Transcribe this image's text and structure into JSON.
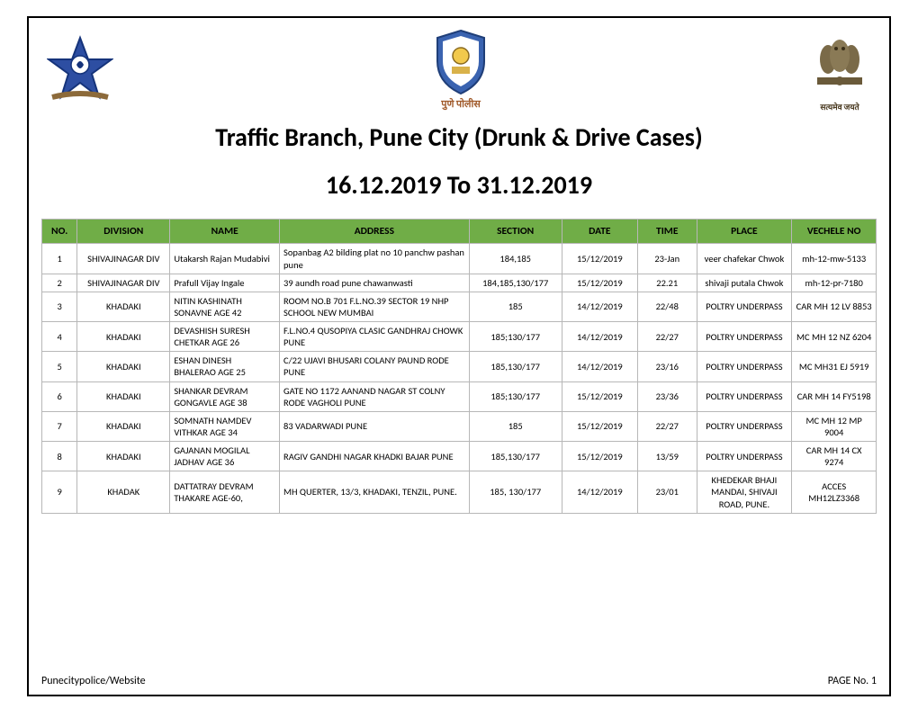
{
  "header": {
    "title_line1": "Traffic Branch, Pune City (Drunk & Drive Cases)",
    "title_line2": "16.12.2019 To 31.12.2019",
    "logo_center_caption": "पुणे पोलीस",
    "logo_right_caption": "सत्यमेव जयते"
  },
  "columns": {
    "no": "NO.",
    "division": "DIVISION",
    "name": "NAME",
    "address": "ADDRESS",
    "section": "SECTION",
    "date": "DATE",
    "time": "TIME",
    "place": "PLACE",
    "vehicle": "VECHELE NO"
  },
  "rows": [
    {
      "no": "1",
      "division": "SHIVAJINAGAR DIV",
      "name": "Utakarsh Rajan Mudabivi",
      "address": "Sopanbag A2 bilding  plat no 10 panchw pashan pune",
      "section": "184,185",
      "date": "15/12/2019",
      "time": "23-Jan",
      "place": "veer chafekar Chwok",
      "vehicle": "mh-12-mw-5133"
    },
    {
      "no": "2",
      "division": "SHIVAJINAGAR DIV",
      "name": "Prafull Vijay Ingale",
      "address": "39 aundh road pune chawanwasti",
      "section": "184,185,130/177",
      "date": "15/12/2019",
      "time": "22.21",
      "place": "shivaji putala Chwok",
      "vehicle": "mh-12-pr-7180"
    },
    {
      "no": "3",
      "division": "KHADAKI",
      "name": "NITIN KASHINATH SONAVNE AGE 42",
      "address": "ROOM NO.B 701 F.L.NO.39 SECTOR 19 NHP SCHOOL NEW MUMBAI",
      "section": "185",
      "date": "14/12/2019",
      "time": "22/48",
      "place": "POLTRY UNDERPASS",
      "vehicle": "CAR MH 12 LV 8853"
    },
    {
      "no": "4",
      "division": "KHADAKI",
      "name": "DEVASHISH SURESH CHETKAR AGE 26",
      "address": "F.L.NO.4 QUSOPIYA CLASIC GANDHRAJ CHOWK PUNE",
      "section": "185;130/177",
      "date": "14/12/2019",
      "time": "22/27",
      "place": "POLTRY UNDERPASS",
      "vehicle": "MC MH 12 NZ 6204"
    },
    {
      "no": "5",
      "division": "KHADAKI",
      "name": "ESHAN DINESH BHALERAO AGE 25",
      "address": "C/22 UJAVI BHUSARI COLANY PAUND RODE PUNE",
      "section": "185,130/177",
      "date": "14/12/2019",
      "time": "23/16",
      "place": "POLTRY UNDERPASS",
      "vehicle": "MC MH31 EJ 5919"
    },
    {
      "no": "6",
      "division": "KHADAKI",
      "name": "SHANKAR DEVRAM GONGAVLE AGE 38",
      "address": "GATE NO 1172 AANAND NAGAR ST COLNY RODE VAGHOLI PUNE",
      "section": "185;130/177",
      "date": "15/12/2019",
      "time": "23/36",
      "place": "POLTRY UNDERPASS",
      "vehicle": "CAR MH 14 FY5198"
    },
    {
      "no": "7",
      "division": "KHADAKI",
      "name": "SOMNATH NAMDEV VITHKAR AGE 34",
      "address": "83 VADARWADI PUNE",
      "section": "185",
      "date": "15/12/2019",
      "time": "22/27",
      "place": "POLTRY UNDERPASS",
      "vehicle": "MC MH 12 MP 9004"
    },
    {
      "no": "8",
      "division": "KHADAKI",
      "name": "GAJANAN MOGILAL JADHAV AGE 36",
      "address": "RAGIV GANDHI NAGAR KHADKI BAJAR PUNE",
      "section": "185,130/177",
      "date": "15/12/2019",
      "time": "13/59",
      "place": "POLTRY UNDERPASS",
      "vehicle": "CAR MH 14 CX 9274"
    },
    {
      "no": "9",
      "division": "KHADAK",
      "name": "DATTATRAY DEVRAM THAKARE AGE-60,",
      "address": "MH QUERTER, 13/3, KHADAKI, TENZIL, PUNE.",
      "section": "185, 130/177",
      "date": "14/12/2019",
      "time": "23/01",
      "place": "KHEDEKAR BHAJI MANDAI, SHIVAJI ROAD, PUNE.",
      "vehicle": "ACCES MH12LZ3368"
    }
  ],
  "footer": {
    "left": "Punecitypolice/Website",
    "right": "PAGE No. 1"
  },
  "style": {
    "header_bg": "#70ad47",
    "border_color": "#b7b7b7",
    "title_fontsize": 28,
    "cell_fontsize": 10.5,
    "header_fontsize": 11.5
  }
}
